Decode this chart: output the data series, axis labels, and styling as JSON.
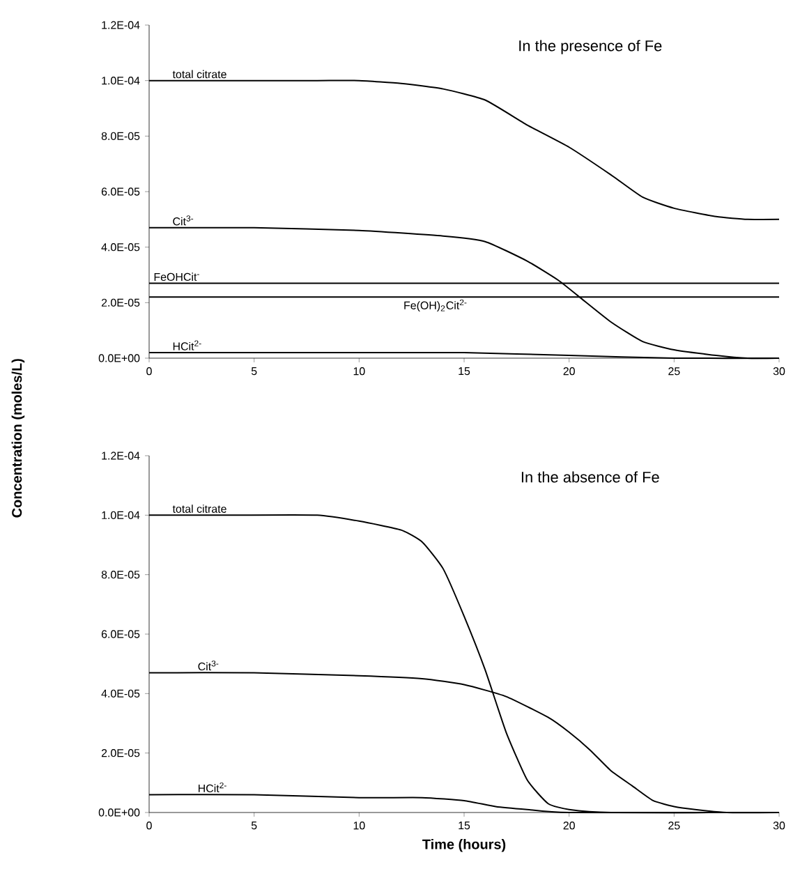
{
  "chart_data": [
    {
      "type": "line",
      "title": "In the presence of Fe",
      "ylabel": "Concentration (moles/L)",
      "xlim": [
        0,
        30
      ],
      "xticks": [
        0,
        5,
        10,
        15,
        20,
        25,
        30
      ],
      "ylim": [
        0,
        0.00012
      ],
      "yticks": [
        {
          "value": 0,
          "label": "0.0E+00"
        },
        {
          "value": 2e-05,
          "label": "2.0E-05"
        },
        {
          "value": 4e-05,
          "label": "4.0E-05"
        },
        {
          "value": 6e-05,
          "label": "6.0E-05"
        },
        {
          "value": 8e-05,
          "label": "8.0E-05"
        },
        {
          "value": 0.0001,
          "label": "1.0E-04"
        },
        {
          "value": 0.00012,
          "label": "1.2E-04"
        }
      ],
      "series": [
        {
          "name": "total citrate",
          "color": "#000000",
          "x": [
            0,
            4,
            8,
            10,
            12,
            14,
            16,
            18,
            20,
            22,
            23.5,
            25,
            27,
            28.5,
            30
          ],
          "values": [
            0.0001,
            0.0001,
            0.0001,
            0.0001,
            9.9e-05,
            9.7e-05,
            9.3e-05,
            8.4e-05,
            7.6e-05,
            6.6e-05,
            5.8e-05,
            5.4e-05,
            5.1e-05,
            5e-05,
            5e-05
          ]
        },
        {
          "name": "Cit$^{3-}$",
          "color": "#000000",
          "x": [
            0,
            5,
            10,
            14,
            16,
            18,
            19.5,
            20.5,
            22,
            23.5,
            25,
            27,
            28.5,
            30
          ],
          "values": [
            4.7e-05,
            4.7e-05,
            4.6e-05,
            4.4e-05,
            4.2e-05,
            3.5e-05,
            2.8e-05,
            2.2e-05,
            1.3e-05,
            6e-06,
            3e-06,
            1e-06,
            0,
            0
          ]
        },
        {
          "name": "FeOHCit$^{-}$",
          "color": "#000000",
          "x": [
            0,
            30
          ],
          "values": [
            2.7e-05,
            2.7e-05
          ]
        },
        {
          "name": "Fe(OH)$_{2}$Cit$^{2-}$",
          "color": "#000000",
          "x": [
            0,
            30
          ],
          "values": [
            2.2e-05,
            2.2e-05
          ]
        },
        {
          "name": "HCit$^{2-}$",
          "color": "#000000",
          "x": [
            0,
            10,
            15,
            20,
            25,
            30
          ],
          "values": [
            2e-06,
            2e-06,
            2e-06,
            1e-06,
            0,
            0
          ]
        }
      ]
    },
    {
      "type": "line",
      "title": "In the absence of Fe",
      "xlabel": "Time (hours)",
      "xlim": [
        0,
        30
      ],
      "xticks": [
        0,
        5,
        10,
        15,
        20,
        25,
        30
      ],
      "ylim": [
        0,
        0.00012
      ],
      "yticks": [
        {
          "value": 0,
          "label": "0.0E+00"
        },
        {
          "value": 2e-05,
          "label": "2.0E-05"
        },
        {
          "value": 4e-05,
          "label": "4.0E-05"
        },
        {
          "value": 6e-05,
          "label": "6.0E-05"
        },
        {
          "value": 8e-05,
          "label": "8.0E-05"
        },
        {
          "value": 0.0001,
          "label": "1.0E-04"
        },
        {
          "value": 0.00012,
          "label": "1.2E-04"
        }
      ],
      "series": [
        {
          "name": "total citrate",
          "color": "#000000",
          "x": [
            0,
            4,
            8,
            10,
            12,
            13,
            14,
            15,
            16,
            17,
            18,
            19,
            20,
            22,
            30
          ],
          "values": [
            0.0001,
            0.0001,
            0.0001,
            9.8e-05,
            9.5e-05,
            9.1e-05,
            8.2e-05,
            6.6e-05,
            4.8e-05,
            2.7e-05,
            1.1e-05,
            3e-06,
            1e-06,
            0,
            0
          ]
        },
        {
          "name": "Cit$^{3-}$",
          "color": "#000000",
          "x": [
            0,
            5,
            10,
            13,
            15,
            17,
            19,
            20,
            21,
            22,
            23,
            24,
            25,
            26,
            27.5,
            30
          ],
          "values": [
            4.7e-05,
            4.7e-05,
            4.6e-05,
            4.5e-05,
            4.3e-05,
            3.9e-05,
            3.2e-05,
            2.7e-05,
            2.1e-05,
            1.4e-05,
            9e-06,
            4e-06,
            2e-06,
            1e-06,
            0,
            0
          ]
        },
        {
          "name": "HCit$^{2-}$",
          "color": "#000000",
          "x": [
            0,
            5,
            10,
            13,
            15,
            16.5,
            18,
            20,
            30
          ],
          "values": [
            6e-06,
            6e-06,
            5e-06,
            5e-06,
            4e-06,
            2e-06,
            1e-06,
            0,
            0
          ]
        }
      ]
    }
  ]
}
